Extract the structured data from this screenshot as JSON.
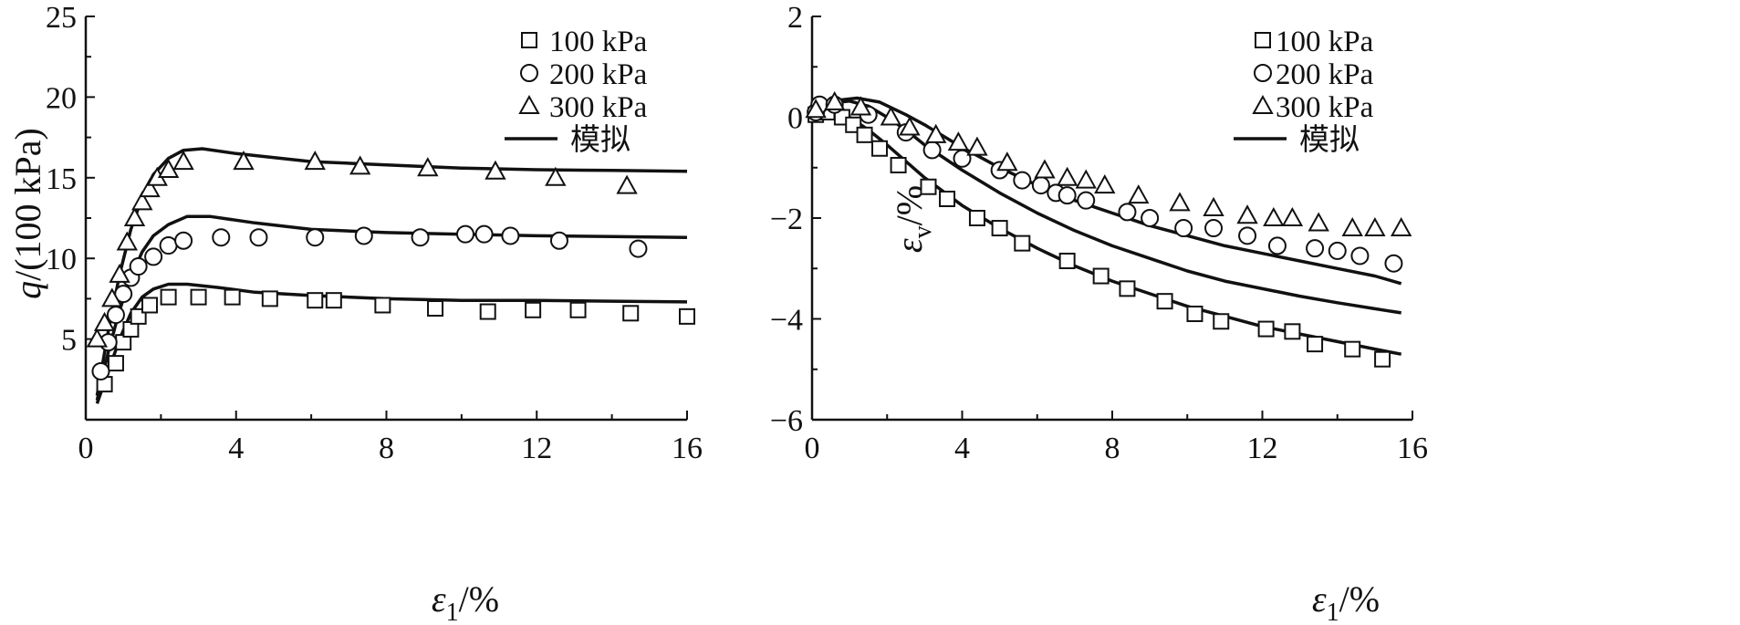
{
  "figure": {
    "colors": {
      "ink": "#111111",
      "background": "#ffffff"
    },
    "legend_entries": [
      {
        "marker": "square",
        "label": "100 kPa"
      },
      {
        "marker": "circle",
        "label": "200 kPa"
      },
      {
        "marker": "triangle",
        "label": "300 kPa"
      },
      {
        "marker": "line",
        "label": "模拟"
      }
    ]
  },
  "chart_data": [
    {
      "id": "left",
      "type": "scatter",
      "xlabel": "ε1/%",
      "ylabel": "q/(100 kPa)",
      "xlim": [
        0,
        16
      ],
      "ylim": [
        0,
        25
      ],
      "xticks": [
        0,
        4,
        8,
        12,
        16
      ],
      "yticks": [
        5,
        10,
        15,
        20,
        25
      ],
      "tick_labels_x": [
        "0",
        "4",
        "8",
        "12",
        "16"
      ],
      "tick_labels_y": [
        "5",
        "10",
        "15",
        "20",
        "25"
      ],
      "legend_position": "top-right",
      "series": [
        {
          "name": "100 kPa",
          "marker": "square",
          "points": [
            [
              0.5,
              2.2
            ],
            [
              0.8,
              3.5
            ],
            [
              1.0,
              4.8
            ],
            [
              1.2,
              5.6
            ],
            [
              1.4,
              6.4
            ],
            [
              1.7,
              7.1
            ],
            [
              2.2,
              7.6
            ],
            [
              3.0,
              7.6
            ],
            [
              3.9,
              7.6
            ],
            [
              4.9,
              7.5
            ],
            [
              6.1,
              7.4
            ],
            [
              6.6,
              7.4
            ],
            [
              7.9,
              7.1
            ],
            [
              9.3,
              6.9
            ],
            [
              10.7,
              6.7
            ],
            [
              11.9,
              6.8
            ],
            [
              13.1,
              6.8
            ],
            [
              14.5,
              6.6
            ],
            [
              16.0,
              6.4
            ]
          ]
        },
        {
          "name": "200 kPa",
          "marker": "circle",
          "points": [
            [
              0.4,
              3.0
            ],
            [
              0.6,
              4.8
            ],
            [
              0.8,
              6.5
            ],
            [
              1.0,
              7.8
            ],
            [
              1.2,
              8.8
            ],
            [
              1.4,
              9.5
            ],
            [
              1.8,
              10.1
            ],
            [
              2.2,
              10.8
            ],
            [
              2.6,
              11.1
            ],
            [
              3.6,
              11.3
            ],
            [
              4.6,
              11.3
            ],
            [
              6.1,
              11.3
            ],
            [
              7.4,
              11.4
            ],
            [
              8.9,
              11.3
            ],
            [
              10.1,
              11.5
            ],
            [
              10.6,
              11.5
            ],
            [
              11.3,
              11.4
            ],
            [
              12.6,
              11.1
            ],
            [
              14.7,
              10.6
            ]
          ]
        },
        {
          "name": "300 kPa",
          "marker": "triangle",
          "points": [
            [
              0.3,
              5.0
            ],
            [
              0.5,
              6.0
            ],
            [
              0.7,
              7.5
            ],
            [
              0.9,
              9.0
            ],
            [
              1.1,
              11.0
            ],
            [
              1.3,
              12.5
            ],
            [
              1.5,
              13.5
            ],
            [
              1.7,
              14.3
            ],
            [
              1.9,
              15.0
            ],
            [
              2.2,
              15.5
            ],
            [
              2.6,
              16.0
            ],
            [
              4.2,
              16.0
            ],
            [
              6.1,
              16.0
            ],
            [
              7.3,
              15.7
            ],
            [
              9.1,
              15.6
            ],
            [
              10.9,
              15.4
            ],
            [
              12.5,
              15.0
            ],
            [
              14.4,
              14.5
            ]
          ]
        }
      ],
      "model_curves": [
        {
          "name": "模拟",
          "points": [
            [
              0.3,
              1.0
            ],
            [
              0.6,
              3.0
            ],
            [
              0.9,
              5.0
            ],
            [
              1.2,
              6.6
            ],
            [
              1.5,
              7.6
            ],
            [
              1.8,
              8.1
            ],
            [
              2.2,
              8.4
            ],
            [
              2.7,
              8.4
            ],
            [
              3.5,
              8.2
            ],
            [
              4.5,
              7.9
            ],
            [
              6,
              7.7
            ],
            [
              8,
              7.5
            ],
            [
              10,
              7.4
            ],
            [
              12,
              7.4
            ],
            [
              14,
              7.35
            ],
            [
              16,
              7.3
            ]
          ]
        },
        {
          "name": "模拟",
          "points": [
            [
              0.3,
              1.2
            ],
            [
              0.6,
              4.2
            ],
            [
              0.9,
              6.8
            ],
            [
              1.2,
              8.8
            ],
            [
              1.5,
              10.4
            ],
            [
              1.8,
              11.4
            ],
            [
              2.2,
              12.1
            ],
            [
              2.7,
              12.6
            ],
            [
              3.3,
              12.6
            ],
            [
              4.5,
              12.2
            ],
            [
              6,
              11.8
            ],
            [
              8,
              11.6
            ],
            [
              10,
              11.5
            ],
            [
              12,
              11.4
            ],
            [
              14,
              11.35
            ],
            [
              16,
              11.3
            ]
          ]
        },
        {
          "name": "模拟",
          "points": [
            [
              0.3,
              1.5
            ],
            [
              0.6,
              5.5
            ],
            [
              0.9,
              9.0
            ],
            [
              1.2,
              11.8
            ],
            [
              1.5,
              13.8
            ],
            [
              1.8,
              15.2
            ],
            [
              2.2,
              16.2
            ],
            [
              2.6,
              16.7
            ],
            [
              3.1,
              16.8
            ],
            [
              4.0,
              16.5
            ],
            [
              6,
              16.0
            ],
            [
              8,
              15.8
            ],
            [
              10,
              15.6
            ],
            [
              12,
              15.5
            ],
            [
              14,
              15.45
            ],
            [
              16,
              15.4
            ]
          ]
        }
      ]
    },
    {
      "id": "right",
      "type": "scatter",
      "xlabel": "ε1/%",
      "ylabel": "εv/%",
      "xlim": [
        0,
        16
      ],
      "ylim": [
        -6,
        2
      ],
      "xticks": [
        0,
        4,
        8,
        12,
        16
      ],
      "yticks": [
        -6,
        -4,
        -2,
        0,
        2
      ],
      "tick_labels_x": [
        "0",
        "4",
        "8",
        "12",
        "16"
      ],
      "tick_labels_y": [
        "−6",
        "−4",
        "−2",
        "0",
        "2"
      ],
      "legend_position": "top-right",
      "series": [
        {
          "name": "100 kPa",
          "marker": "square",
          "points": [
            [
              0.1,
              0.05
            ],
            [
              0.4,
              0.1
            ],
            [
              0.8,
              0.0
            ],
            [
              1.1,
              -0.15
            ],
            [
              1.4,
              -0.35
            ],
            [
              1.8,
              -0.62
            ],
            [
              2.3,
              -0.95
            ],
            [
              3.1,
              -1.38
            ],
            [
              3.6,
              -1.62
            ],
            [
              4.4,
              -2.0
            ],
            [
              5.0,
              -2.2
            ],
            [
              5.6,
              -2.5
            ],
            [
              6.8,
              -2.85
            ],
            [
              7.7,
              -3.15
            ],
            [
              8.4,
              -3.4
            ],
            [
              9.4,
              -3.65
            ],
            [
              10.2,
              -3.9
            ],
            [
              10.9,
              -4.05
            ],
            [
              12.1,
              -4.2
            ],
            [
              12.8,
              -4.25
            ],
            [
              13.4,
              -4.5
            ],
            [
              14.4,
              -4.6
            ],
            [
              15.2,
              -4.8
            ]
          ]
        },
        {
          "name": "200 kPa",
          "marker": "circle",
          "points": [
            [
              0.1,
              0.1
            ],
            [
              0.2,
              0.25
            ],
            [
              0.6,
              0.25
            ],
            [
              1.5,
              0.05
            ],
            [
              2.5,
              -0.3
            ],
            [
              3.2,
              -0.65
            ],
            [
              4.0,
              -0.82
            ],
            [
              5.0,
              -1.05
            ],
            [
              5.6,
              -1.25
            ],
            [
              6.1,
              -1.35
            ],
            [
              6.5,
              -1.5
            ],
            [
              6.8,
              -1.55
            ],
            [
              7.3,
              -1.65
            ],
            [
              8.4,
              -1.88
            ],
            [
              9.0,
              -2.0
            ],
            [
              9.9,
              -2.2
            ],
            [
              10.7,
              -2.2
            ],
            [
              11.6,
              -2.35
            ],
            [
              12.4,
              -2.55
            ],
            [
              13.4,
              -2.6
            ],
            [
              14.0,
              -2.65
            ],
            [
              14.6,
              -2.75
            ],
            [
              15.5,
              -2.9
            ]
          ]
        },
        {
          "name": "300 kPa",
          "marker": "triangle",
          "points": [
            [
              0.1,
              0.15
            ],
            [
              0.6,
              0.3
            ],
            [
              1.3,
              0.2
            ],
            [
              2.1,
              0.0
            ],
            [
              2.6,
              -0.2
            ],
            [
              3.3,
              -0.35
            ],
            [
              3.9,
              -0.5
            ],
            [
              4.4,
              -0.6
            ],
            [
              5.2,
              -0.9
            ],
            [
              6.2,
              -1.05
            ],
            [
              6.8,
              -1.2
            ],
            [
              7.3,
              -1.25
            ],
            [
              7.8,
              -1.35
            ],
            [
              8.7,
              -1.55
            ],
            [
              9.8,
              -1.7
            ],
            [
              10.7,
              -1.8
            ],
            [
              11.6,
              -1.95
            ],
            [
              12.3,
              -2.0
            ],
            [
              12.8,
              -2.0
            ],
            [
              13.5,
              -2.1
            ],
            [
              14.4,
              -2.2
            ],
            [
              15.0,
              -2.2
            ],
            [
              15.7,
              -2.2
            ]
          ]
        }
      ],
      "model_curves": [
        {
          "name": "模拟",
          "points": [
            [
              0,
              0.05
            ],
            [
              0.5,
              0.1
            ],
            [
              1.0,
              0.0
            ],
            [
              1.5,
              -0.25
            ],
            [
              2,
              -0.55
            ],
            [
              3,
              -1.2
            ],
            [
              4,
              -1.75
            ],
            [
              5,
              -2.2
            ],
            [
              6,
              -2.6
            ],
            [
              7,
              -2.95
            ],
            [
              8,
              -3.25
            ],
            [
              9,
              -3.5
            ],
            [
              10,
              -3.75
            ],
            [
              11,
              -3.95
            ],
            [
              12,
              -4.15
            ],
            [
              13,
              -4.3
            ],
            [
              14,
              -4.45
            ],
            [
              15,
              -4.6
            ],
            [
              15.7,
              -4.7
            ]
          ]
        },
        {
          "name": "模拟",
          "points": [
            [
              0,
              0.1
            ],
            [
              0.5,
              0.28
            ],
            [
              1.0,
              0.32
            ],
            [
              1.5,
              0.22
            ],
            [
              2,
              0.0
            ],
            [
              2.5,
              -0.25
            ],
            [
              3,
              -0.55
            ],
            [
              4,
              -1.05
            ],
            [
              5,
              -1.5
            ],
            [
              6,
              -1.9
            ],
            [
              7,
              -2.25
            ],
            [
              8,
              -2.55
            ],
            [
              9,
              -2.8
            ],
            [
              10,
              -3.05
            ],
            [
              11,
              -3.25
            ],
            [
              12,
              -3.4
            ],
            [
              13,
              -3.55
            ],
            [
              14,
              -3.68
            ],
            [
              15,
              -3.8
            ],
            [
              15.7,
              -3.88
            ]
          ]
        },
        {
          "name": "模拟",
          "points": [
            [
              0,
              0.15
            ],
            [
              0.5,
              0.32
            ],
            [
              1.2,
              0.38
            ],
            [
              1.8,
              0.3
            ],
            [
              2.5,
              0.05
            ],
            [
              3,
              -0.15
            ],
            [
              4,
              -0.6
            ],
            [
              5,
              -1.0
            ],
            [
              6,
              -1.35
            ],
            [
              7,
              -1.65
            ],
            [
              8,
              -1.9
            ],
            [
              9,
              -2.15
            ],
            [
              10,
              -2.35
            ],
            [
              11,
              -2.55
            ],
            [
              12,
              -2.7
            ],
            [
              13,
              -2.85
            ],
            [
              14,
              -3.0
            ],
            [
              15,
              -3.15
            ],
            [
              15.7,
              -3.3
            ]
          ]
        }
      ]
    }
  ]
}
